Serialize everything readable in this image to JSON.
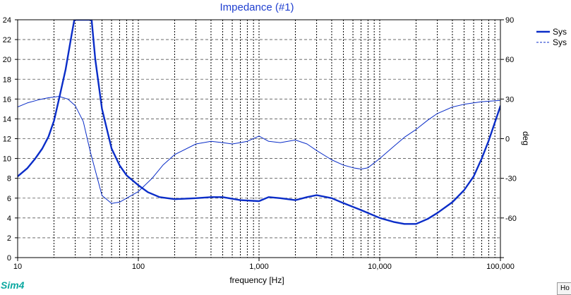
{
  "chart_data": {
    "type": "line",
    "title": "Impedance (#1)",
    "xlabel": "frequency [Hz]",
    "ylabel": "",
    "y2label": "deg",
    "xscale": "log",
    "xlim": [
      10,
      100000
    ],
    "ylim": [
      0,
      24
    ],
    "y2lim": [
      -90,
      90
    ],
    "x_ticks": [
      10,
      100,
      1000,
      10000,
      100000
    ],
    "x_tick_labels": [
      "10",
      "100",
      "1,000",
      "10,000",
      "100,000"
    ],
    "y_ticks": [
      0,
      2,
      4,
      6,
      8,
      10,
      12,
      14,
      16,
      18,
      20,
      22,
      24
    ],
    "y_tick_labels": [
      "0",
      "2",
      "4",
      "6",
      "8",
      "10",
      "12",
      "14",
      "16",
      "18",
      "20",
      "22",
      "24"
    ],
    "y2_ticks": [
      -90,
      -60,
      -30,
      0,
      30,
      60,
      90
    ],
    "y2_tick_labels": [
      "",
      "-60",
      "-30",
      "0",
      "30",
      "60",
      "90"
    ],
    "grid": true,
    "legend_position": "top-right",
    "series": [
      {
        "name": "Sys",
        "axis": "left",
        "style": "solid-thick",
        "color": "#0a2dc8",
        "x": [
          10,
          12,
          14,
          16,
          18,
          20,
          22,
          25,
          28,
          29.5,
          41,
          44,
          50,
          60,
          70,
          80,
          100,
          120,
          150,
          200,
          300,
          400,
          500,
          700,
          1000,
          1200,
          1500,
          2000,
          2500,
          3000,
          4000,
          5000,
          7000,
          10000,
          13000,
          16000,
          20000,
          25000,
          30000,
          40000,
          50000,
          60000,
          70000,
          80000,
          100000
        ],
        "y": [
          8.2,
          9.0,
          10.0,
          11.0,
          12.2,
          13.8,
          16.0,
          19.0,
          22.5,
          24.0,
          24.0,
          20.0,
          15.0,
          11.0,
          9.3,
          8.3,
          7.3,
          6.6,
          6.1,
          5.9,
          6.0,
          6.1,
          6.1,
          5.8,
          5.7,
          6.1,
          6.0,
          5.8,
          6.1,
          6.3,
          6.0,
          5.5,
          4.8,
          4.0,
          3.6,
          3.4,
          3.4,
          3.9,
          4.5,
          5.6,
          6.8,
          8.2,
          10.0,
          11.8,
          15.3
        ]
      },
      {
        "name": "Sys",
        "axis": "right",
        "style": "dashed-thin",
        "color": "#0a2dc8",
        "x": [
          10,
          12,
          15,
          18,
          22,
          26,
          30,
          35,
          40,
          50,
          60,
          70,
          80,
          100,
          130,
          160,
          200,
          300,
          400,
          500,
          600,
          700,
          800,
          1000,
          1200,
          1500,
          2000,
          2500,
          3000,
          4000,
          5000,
          6000,
          7000,
          8000,
          10000,
          13000,
          16000,
          20000,
          25000,
          30000,
          40000,
          50000,
          70000,
          100000
        ],
        "y": [
          24,
          27,
          29.5,
          31,
          32,
          30,
          25,
          13,
          -10,
          -43,
          -49,
          -48,
          -45,
          -40,
          -30,
          -20,
          -12,
          -4,
          -2,
          -3,
          -4,
          -3,
          -2,
          2,
          -2,
          -3,
          -1,
          -4,
          -9,
          -16,
          -20,
          -22,
          -23,
          -22,
          -15,
          -6,
          1,
          7,
          14,
          19,
          24,
          26,
          28,
          29
        ]
      }
    ]
  },
  "brand": {
    "label": "Sim4"
  },
  "corner_hint": {
    "label": "Ho"
  }
}
